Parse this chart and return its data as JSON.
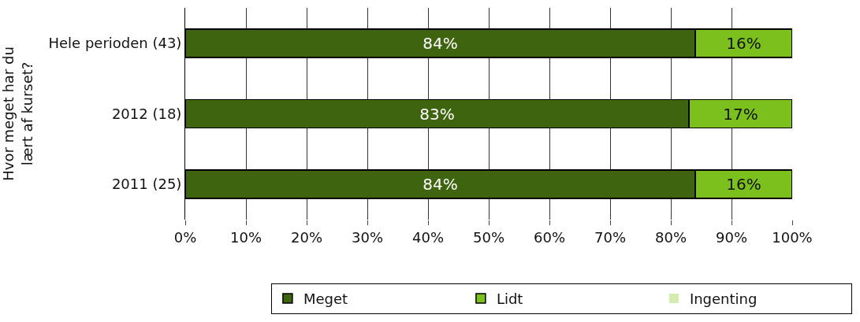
{
  "chart_data": {
    "type": "bar",
    "orientation": "horizontal",
    "stacked": true,
    "ylabel": "Hvor meget har du lært af kurset?",
    "categories": [
      "Hele perioden (43)",
      "2012 (18)",
      "2011 (25)"
    ],
    "series": [
      {
        "name": "Meget",
        "color": "#3f6410",
        "values": [
          84,
          83,
          84
        ],
        "value_labels": [
          "84%",
          "83%",
          "84%"
        ]
      },
      {
        "name": "Lidt",
        "color": "#7cc01e",
        "values": [
          16,
          17,
          16
        ],
        "value_labels": [
          "16%",
          "17%",
          "16%"
        ]
      },
      {
        "name": "Ingenting",
        "color": "#d4ecb0",
        "values": [
          0,
          0,
          0
        ]
      }
    ],
    "xlim": [
      0,
      100
    ],
    "xticks": [
      {
        "value": 0,
        "label": "0%"
      },
      {
        "value": 10,
        "label": "10%"
      },
      {
        "value": 20,
        "label": "20%"
      },
      {
        "value": 30,
        "label": "30%"
      },
      {
        "value": 40,
        "label": "40%"
      },
      {
        "value": 50,
        "label": "50%"
      },
      {
        "value": 60,
        "label": "60%"
      },
      {
        "value": 70,
        "label": "70%"
      },
      {
        "value": 80,
        "label": "80%"
      },
      {
        "value": 90,
        "label": "90%"
      },
      {
        "value": 100,
        "label": "100%"
      }
    ],
    "grid": "x",
    "legend": "bottom"
  }
}
